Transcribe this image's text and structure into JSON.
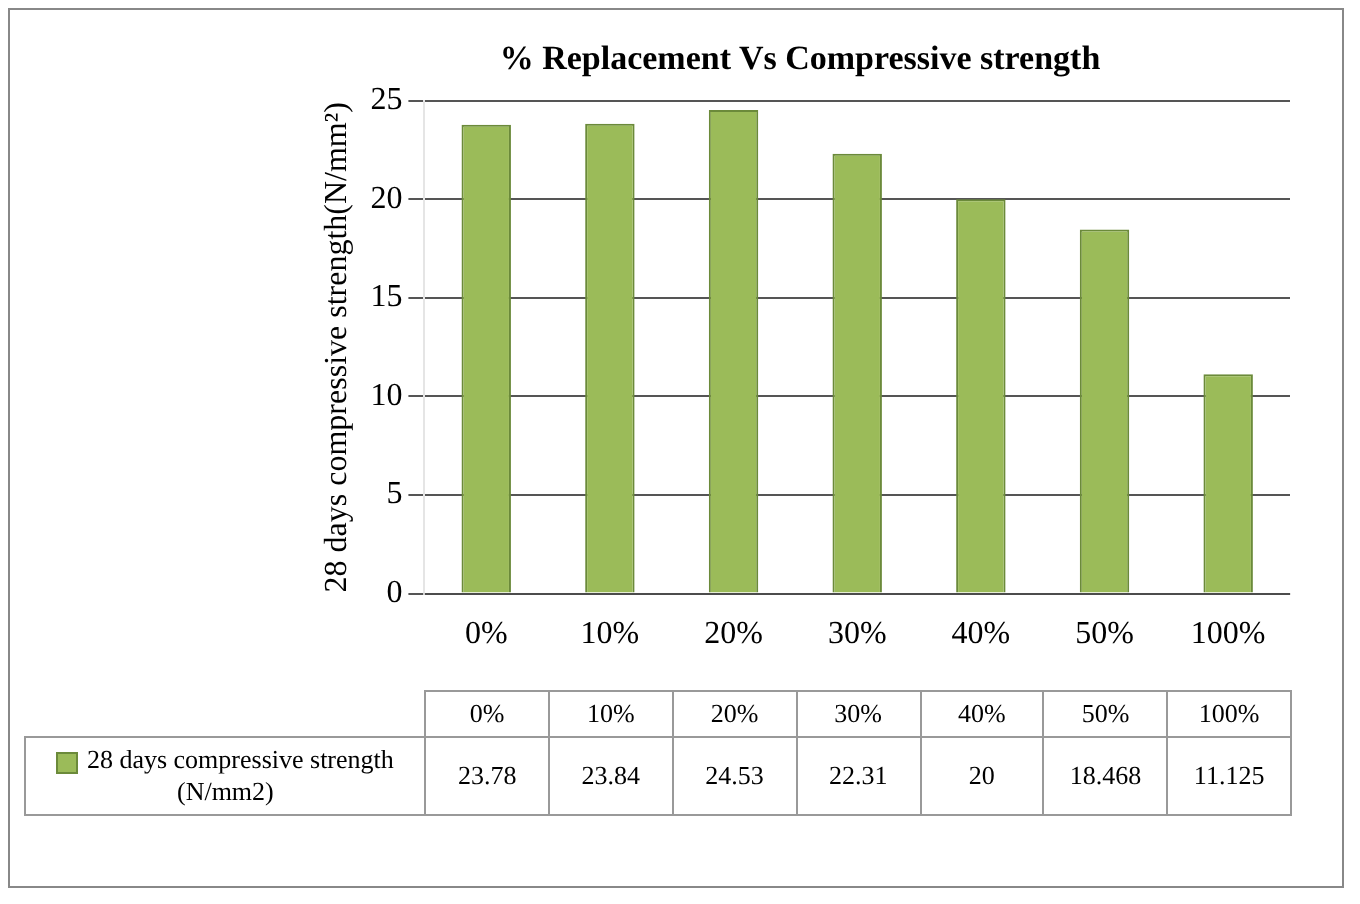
{
  "chart_data": {
    "type": "bar",
    "title": "% Replacement Vs Compressive strength",
    "ylabel": "28 days compressive strength(N/mm²)",
    "categories": [
      "0%",
      "10%",
      "20%",
      "30%",
      "40%",
      "50%",
      "100%"
    ],
    "series": [
      {
        "name": "28 days compressive strength (N/mm2)",
        "color": "#9bbb59",
        "values": [
          23.78,
          23.84,
          24.53,
          22.31,
          20,
          18.468,
          11.125
        ],
        "value_labels": [
          "23.78",
          "23.84",
          "24.53",
          "22.31",
          "20",
          "18.468",
          "11.125"
        ]
      }
    ],
    "ylim": [
      0,
      25
    ],
    "yticks": [
      0,
      5,
      10,
      15,
      20,
      25
    ],
    "grid": "y"
  }
}
